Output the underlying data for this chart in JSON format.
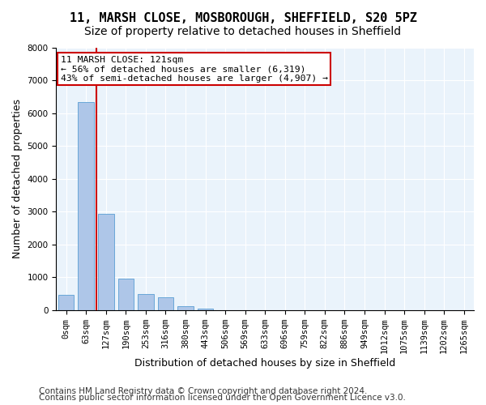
{
  "title_line1": "11, MARSH CLOSE, MOSBOROUGH, SHEFFIELD, S20 5PZ",
  "title_line2": "Size of property relative to detached houses in Sheffield",
  "xlabel": "Distribution of detached houses by size in Sheffield",
  "ylabel": "Number of detached properties",
  "bar_color": "#aec6e8",
  "bar_edge_color": "#5a9fd4",
  "background_color": "#eaf3fb",
  "property_line_color": "#cc0000",
  "annotation_text": "11 MARSH CLOSE: 121sqm\n← 56% of detached houses are smaller (6,319)\n43% of semi-detached houses are larger (4,907) →",
  "categories": [
    "0sqm",
    "63sqm",
    "127sqm",
    "190sqm",
    "253sqm",
    "316sqm",
    "380sqm",
    "443sqm",
    "506sqm",
    "569sqm",
    "633sqm",
    "696sqm",
    "759sqm",
    "822sqm",
    "886sqm",
    "949sqm",
    "1012sqm",
    "1075sqm",
    "1139sqm",
    "1202sqm",
    "1265sqm"
  ],
  "values": [
    480,
    6350,
    2950,
    970,
    490,
    390,
    130,
    60,
    0,
    0,
    0,
    0,
    0,
    0,
    0,
    0,
    0,
    0,
    0,
    0,
    0
  ],
  "ylim": [
    0,
    8000
  ],
  "yticks": [
    0,
    1000,
    2000,
    3000,
    4000,
    5000,
    6000,
    7000,
    8000
  ],
  "footer_line1": "Contains HM Land Registry data © Crown copyright and database right 2024.",
  "footer_line2": "Contains public sector information licensed under the Open Government Licence v3.0.",
  "title_fontsize": 11,
  "subtitle_fontsize": 10,
  "axis_label_fontsize": 9,
  "tick_fontsize": 7.5,
  "footer_fontsize": 7.5
}
